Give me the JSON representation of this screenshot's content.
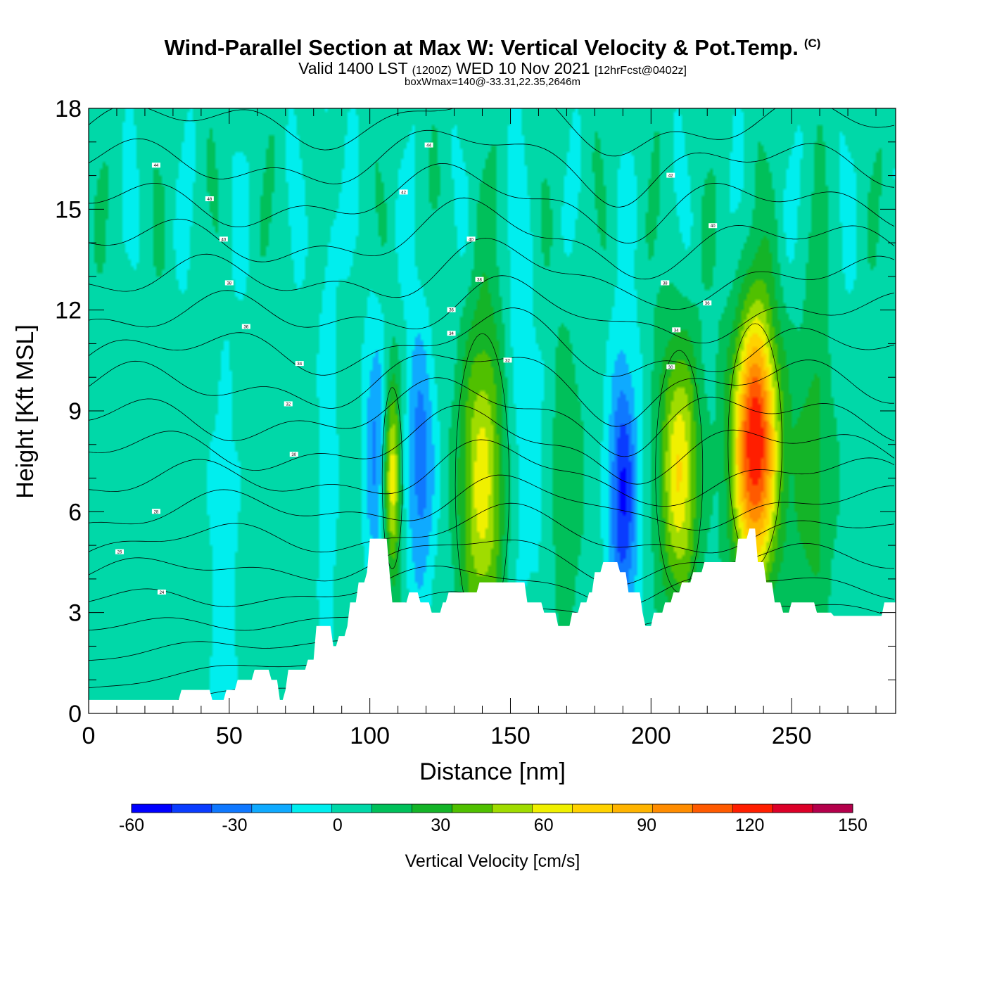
{
  "title": "Wind-Parallel Section at Max W: Vertical Velocity & Pot.Temp.",
  "copyright": "(C)",
  "subtitle": {
    "valid": "Valid 1400 LST",
    "zulu": "(1200Z)",
    "date": "WED 10 Nov 2021",
    "fcst": "[12hrFcst@0402z]"
  },
  "boxinfo": "boxWmax=140@-33.31,22.35,2646m",
  "chart_data": {
    "type": "heatmap",
    "xlabel": "Distance [nm]",
    "ylabel": "Height [Kft MSL]",
    "xlim": [
      0,
      287
    ],
    "ylim": [
      0,
      18
    ],
    "xticks": [
      "0",
      "50",
      "100",
      "150",
      "200",
      "250"
    ],
    "yticks": [
      "0",
      "3",
      "6",
      "9",
      "12",
      "15",
      "18"
    ],
    "colorbar": {
      "label": "Vertical Velocity [cm/s]",
      "ticks": [
        "-60",
        "-30",
        "0",
        "30",
        "60",
        "90",
        "120",
        "150"
      ],
      "range": [
        -60,
        150
      ],
      "colors": [
        "#0000ff",
        "#0a3cff",
        "#0f78ff",
        "#0faaff",
        "#00eeee",
        "#00d8a8",
        "#00c05a",
        "#14b428",
        "#50c000",
        "#a0dc00",
        "#f0f000",
        "#ffd200",
        "#ffb400",
        "#ff8c00",
        "#ff5a00",
        "#ff1e00",
        "#dc0028",
        "#b4004b"
      ]
    },
    "vertical_velocity_cells": [
      {
        "x": 48,
        "z": 4.0,
        "w": -12,
        "sx": 5,
        "sz": 6
      },
      {
        "x": 85,
        "z": 9.0,
        "w": -15,
        "sx": 3,
        "sz": 10
      },
      {
        "x": 102,
        "z": 8.0,
        "w": -30,
        "sx": 4,
        "sz": 4
      },
      {
        "x": 108,
        "z": 7.0,
        "w": 62,
        "sx": 3,
        "sz": 3
      },
      {
        "x": 118,
        "z": 7.5,
        "w": -35,
        "sx": 5,
        "sz": 4
      },
      {
        "x": 140,
        "z": 6.8,
        "w": 60,
        "sx": 8,
        "sz": 5
      },
      {
        "x": 155,
        "z": 8.0,
        "w": -12,
        "sx": 8,
        "sz": 6
      },
      {
        "x": 170,
        "z": 7.0,
        "w": 18,
        "sx": 6,
        "sz": 5
      },
      {
        "x": 190,
        "z": 6.5,
        "w": -52,
        "sx": 5,
        "sz": 4
      },
      {
        "x": 210,
        "z": 7.2,
        "w": 65,
        "sx": 7,
        "sz": 4
      },
      {
        "x": 237,
        "z": 8.0,
        "w": 125,
        "sx": 8,
        "sz": 4
      },
      {
        "x": 257,
        "z": 7.0,
        "w": 25,
        "sx": 8,
        "sz": 5
      }
    ],
    "terrain_kft": [
      [
        0,
        0.4
      ],
      [
        32,
        0.4
      ],
      [
        33,
        0.7
      ],
      [
        43,
        0.7
      ],
      [
        44,
        0.4
      ],
      [
        48,
        0.4
      ],
      [
        49,
        0.7
      ],
      [
        52,
        0.7
      ],
      [
        53,
        1.0
      ],
      [
        58,
        1.0
      ],
      [
        59,
        1.3
      ],
      [
        64,
        1.3
      ],
      [
        65,
        1.0
      ],
      [
        67,
        1.0
      ],
      [
        68,
        0.4
      ],
      [
        69,
        0.4
      ],
      [
        70,
        0.7
      ],
      [
        71,
        1.3
      ],
      [
        77,
        1.3
      ],
      [
        78,
        1.6
      ],
      [
        80,
        1.6
      ],
      [
        81,
        2.6
      ],
      [
        86,
        2.6
      ],
      [
        87,
        2.0
      ],
      [
        88,
        2.0
      ],
      [
        89,
        2.3
      ],
      [
        91,
        2.3
      ],
      [
        92,
        2.6
      ],
      [
        93,
        3.3
      ],
      [
        95,
        3.3
      ],
      [
        96,
        3.9
      ],
      [
        98,
        3.9
      ],
      [
        99,
        4.2
      ],
      [
        100,
        5.2
      ],
      [
        106,
        5.2
      ],
      [
        107,
        4.2
      ],
      [
        108,
        3.3
      ],
      [
        113,
        3.3
      ],
      [
        114,
        3.6
      ],
      [
        117,
        3.6
      ],
      [
        118,
        3.3
      ],
      [
        121,
        3.3
      ],
      [
        122,
        3.0
      ],
      [
        125,
        3.0
      ],
      [
        126,
        3.3
      ],
      [
        127,
        3.3
      ],
      [
        128,
        3.6
      ],
      [
        138,
        3.6
      ],
      [
        139,
        3.9
      ],
      [
        155,
        3.9
      ],
      [
        156,
        3.3
      ],
      [
        161,
        3.3
      ],
      [
        162,
        3.0
      ],
      [
        166,
        3.0
      ],
      [
        167,
        2.6
      ],
      [
        171,
        2.6
      ],
      [
        172,
        3.0
      ],
      [
        174,
        3.0
      ],
      [
        175,
        3.3
      ],
      [
        177,
        3.3
      ],
      [
        178,
        3.6
      ],
      [
        179,
        3.6
      ],
      [
        180,
        4.2
      ],
      [
        182,
        4.2
      ],
      [
        183,
        4.5
      ],
      [
        188,
        4.5
      ],
      [
        189,
        4.2
      ],
      [
        191,
        4.2
      ],
      [
        192,
        3.6
      ],
      [
        196,
        3.6
      ],
      [
        197,
        3.0
      ],
      [
        198,
        2.6
      ],
      [
        200,
        2.6
      ],
      [
        201,
        3.0
      ],
      [
        204,
        3.0
      ],
      [
        205,
        3.3
      ],
      [
        207,
        3.3
      ],
      [
        208,
        3.6
      ],
      [
        210,
        3.6
      ],
      [
        211,
        3.9
      ],
      [
        214,
        3.9
      ],
      [
        215,
        4.2
      ],
      [
        218,
        4.2
      ],
      [
        219,
        4.5
      ],
      [
        230,
        4.5
      ],
      [
        231,
        5.2
      ],
      [
        234,
        5.2
      ],
      [
        235,
        5.5
      ],
      [
        237,
        5.5
      ],
      [
        238,
        4.5
      ],
      [
        240,
        4.5
      ],
      [
        241,
        3.9
      ],
      [
        243,
        3.9
      ],
      [
        244,
        3.3
      ],
      [
        246,
        3.3
      ],
      [
        247,
        3.0
      ],
      [
        249,
        3.0
      ],
      [
        250,
        3.3
      ],
      [
        258,
        3.3
      ],
      [
        259,
        3.0
      ],
      [
        264,
        3.0
      ],
      [
        265,
        2.9
      ],
      [
        282,
        2.9
      ],
      [
        283,
        3.3
      ],
      [
        287,
        3.3
      ]
    ],
    "theta_labels": [
      {
        "x": 24,
        "z": 16.3,
        "t": "44"
      },
      {
        "x": 43,
        "z": 15.3,
        "t": "48"
      },
      {
        "x": 48,
        "z": 14.1,
        "t": "40"
      },
      {
        "x": 50,
        "z": 12.8,
        "t": "38"
      },
      {
        "x": 56,
        "z": 11.5,
        "t": "36"
      },
      {
        "x": 75,
        "z": 10.4,
        "t": "34"
      },
      {
        "x": 71,
        "z": 9.2,
        "t": "32"
      },
      {
        "x": 73,
        "z": 7.7,
        "t": "30"
      },
      {
        "x": 24,
        "z": 6.0,
        "t": "28"
      },
      {
        "x": 11,
        "z": 4.8,
        "t": "26"
      },
      {
        "x": 26,
        "z": 3.6,
        "t": "24"
      },
      {
        "x": 121,
        "z": 16.9,
        "t": "44"
      },
      {
        "x": 112,
        "z": 15.5,
        "t": "42"
      },
      {
        "x": 136,
        "z": 14.1,
        "t": "40"
      },
      {
        "x": 139,
        "z": 12.9,
        "t": "38"
      },
      {
        "x": 129,
        "z": 12.0,
        "t": "36"
      },
      {
        "x": 129,
        "z": 11.3,
        "t": "34"
      },
      {
        "x": 149,
        "z": 10.5,
        "t": "32"
      },
      {
        "x": 207,
        "z": 16.0,
        "t": "42"
      },
      {
        "x": 222,
        "z": 14.5,
        "t": "40"
      },
      {
        "x": 205,
        "z": 12.8,
        "t": "38"
      },
      {
        "x": 220,
        "z": 12.2,
        "t": "36"
      },
      {
        "x": 209,
        "z": 11.4,
        "t": "34"
      },
      {
        "x": 207,
        "z": 10.3,
        "t": "30"
      }
    ]
  }
}
